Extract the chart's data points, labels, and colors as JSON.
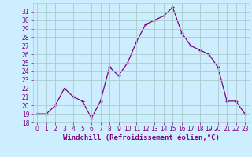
{
  "x": [
    0,
    1,
    2,
    3,
    4,
    5,
    6,
    7,
    8,
    9,
    10,
    11,
    12,
    13,
    14,
    15,
    16,
    17,
    18,
    19,
    20,
    21,
    22,
    23
  ],
  "y": [
    19,
    19,
    20,
    22,
    21,
    20.5,
    18.5,
    20.5,
    24.5,
    23.5,
    25,
    27.5,
    29.5,
    30,
    30.5,
    31.5,
    28.5,
    27,
    26.5,
    26,
    24.5,
    20.5,
    20.5,
    19
  ],
  "line_color": "#800080",
  "marker": "+",
  "bg_color": "#cceeff",
  "grid_color": "#aacccc",
  "xlabel": "Windchill (Refroidissement éolien,°C)",
  "xlabel_color": "#800080",
  "tick_color": "#800080",
  "ylim": [
    18,
    32
  ],
  "xlim": [
    -0.5,
    23.5
  ],
  "yticks": [
    18,
    19,
    20,
    21,
    22,
    23,
    24,
    25,
    26,
    27,
    28,
    29,
    30,
    31
  ],
  "xticks": [
    0,
    1,
    2,
    3,
    4,
    5,
    6,
    7,
    8,
    9,
    10,
    11,
    12,
    13,
    14,
    15,
    16,
    17,
    18,
    19,
    20,
    21,
    22,
    23
  ],
  "font_size_axis": 6.5,
  "font_size_ticks": 5.5,
  "line_width": 0.9,
  "marker_size": 3.5
}
